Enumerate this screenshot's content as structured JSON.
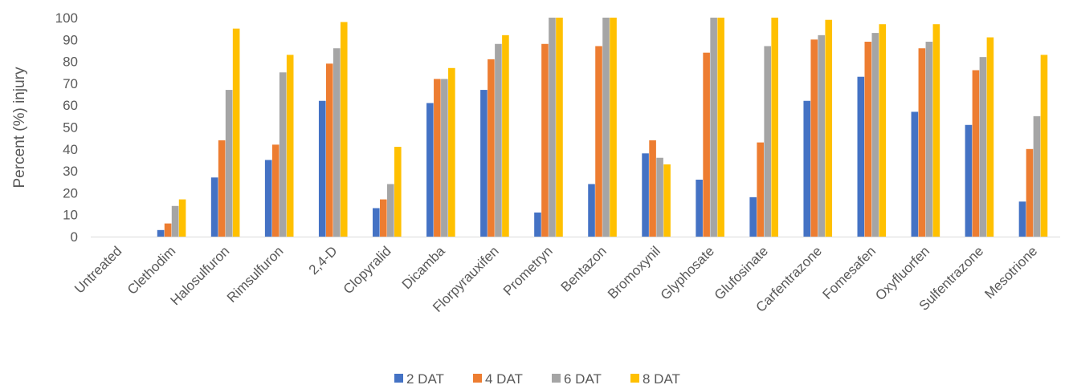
{
  "chart_data": {
    "type": "bar",
    "title": "",
    "xlabel": "",
    "ylabel": "Percent (%) injury",
    "ylim": [
      0,
      100
    ],
    "yticks": [
      0,
      10,
      20,
      30,
      40,
      50,
      60,
      70,
      80,
      90,
      100
    ],
    "grid": false,
    "legend_position": "bottom",
    "categories": [
      "Untreated",
      "Clethodim",
      "Halosulfuron",
      "Rimsulfuron",
      "2,4-D",
      "Clopyralid",
      "Dicamba",
      "Florpyrauxifen",
      "Prometryn",
      "Bentazon",
      "Bromoxynil",
      "Glyphosate",
      "Glufosinate",
      "Carfentrazone",
      "Fomesafen",
      "Oxyfluorfen",
      "Sulfentrazone",
      "Mesotrione"
    ],
    "series": [
      {
        "name": "2 DAT",
        "color": "#4472C4",
        "values": [
          0,
          3,
          27,
          35,
          62,
          13,
          61,
          67,
          11,
          24,
          38,
          26,
          18,
          62,
          73,
          57,
          51,
          16
        ]
      },
      {
        "name": "4 DAT",
        "color": "#ED7D31",
        "values": [
          0,
          6,
          44,
          42,
          79,
          17,
          72,
          81,
          88,
          87,
          44,
          84,
          43,
          90,
          89,
          86,
          76,
          40
        ]
      },
      {
        "name": "6 DAT",
        "color": "#A5A5A5",
        "values": [
          0,
          14,
          67,
          75,
          86,
          24,
          72,
          88,
          100,
          100,
          36,
          100,
          87,
          92,
          93,
          89,
          82,
          55
        ]
      },
      {
        "name": "8 DAT",
        "color": "#FFC000",
        "values": [
          0,
          17,
          95,
          83,
          98,
          41,
          77,
          92,
          100,
          100,
          33,
          100,
          100,
          99,
          97,
          97,
          91,
          83
        ]
      }
    ]
  }
}
